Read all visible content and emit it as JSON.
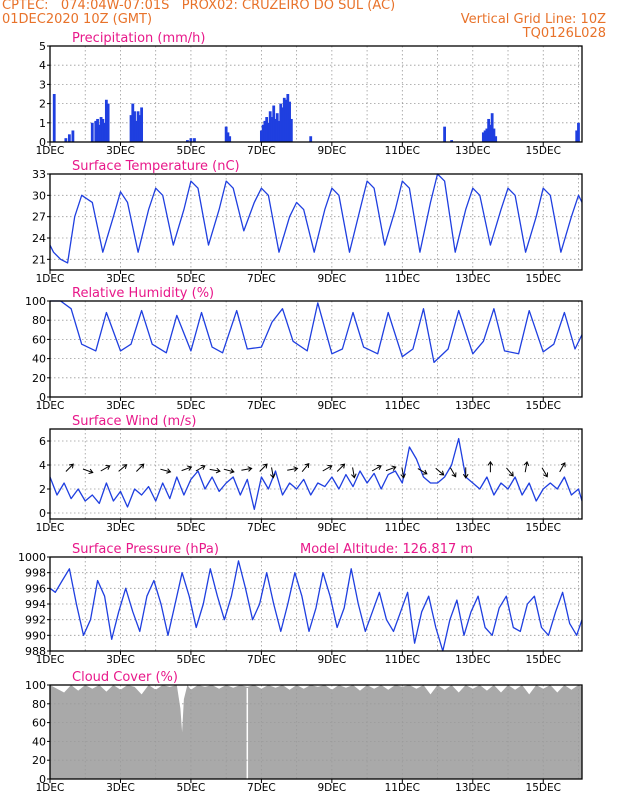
{
  "header": {
    "line1": "CPTEC:   074:04W-07:01S   PROX02: CRUZEIRO DO SUL (AC)",
    "line2_left": "01DEC2020 10Z (GMT)",
    "line2_right": "Vertical Grid Line: 10Z",
    "line3_right": "TQ0126L028"
  },
  "colors": {
    "header": "#e8722a",
    "title": "#e8188a",
    "series": "#1f3fe0",
    "cloud": "#a9a9a9",
    "grid": "#9a9a9a"
  },
  "xaxis": {
    "tick_labels": [
      "1DEC",
      "3DEC",
      "5DEC",
      "7DEC",
      "9DEC",
      "11DEC",
      "13DEC",
      "15DEC"
    ],
    "range_days": [
      1,
      16.1
    ]
  },
  "chart_data": [
    {
      "type": "bar",
      "title": "Precipitation (mm/h)",
      "ylim": [
        0,
        5
      ],
      "yticks": [
        0,
        1,
        2,
        3,
        4,
        5
      ],
      "x": [
        1.12,
        1.45,
        1.55,
        1.65,
        2.2,
        2.3,
        2.35,
        2.4,
        2.45,
        2.5,
        2.55,
        2.6,
        2.65,
        3.3,
        3.35,
        3.4,
        3.45,
        3.5,
        3.55,
        3.6,
        4.9,
        5.0,
        5.1,
        6.0,
        6.05,
        6.1,
        7.0,
        7.05,
        7.1,
        7.15,
        7.2,
        7.25,
        7.3,
        7.35,
        7.4,
        7.45,
        7.5,
        7.55,
        7.6,
        7.65,
        7.7,
        7.75,
        7.8,
        7.85,
        8.4,
        12.2,
        12.4,
        13.3,
        13.35,
        13.4,
        13.45,
        13.5,
        13.55,
        13.6,
        13.65,
        15.95,
        16.0
      ],
      "values": [
        2.5,
        0.2,
        0.4,
        0.6,
        1.0,
        1.1,
        1.2,
        0.9,
        1.3,
        1.2,
        1.0,
        2.2,
        2.0,
        1.4,
        2.0,
        1.6,
        1.1,
        1.6,
        1.4,
        1.8,
        0.1,
        0.2,
        0.2,
        0.8,
        0.5,
        0.3,
        0.6,
        0.9,
        1.1,
        1.3,
        1.0,
        1.6,
        1.3,
        1.9,
        1.2,
        1.5,
        1.1,
        2.0,
        1.8,
        2.3,
        2.2,
        2.5,
        2.1,
        1.2,
        0.3,
        0.8,
        0.1,
        0.5,
        0.6,
        0.7,
        1.2,
        0.9,
        1.5,
        0.7,
        0.3,
        0.6,
        1.0
      ]
    },
    {
      "type": "line",
      "title": "Surface Temperature (nC)",
      "ylim": [
        19.5,
        33
      ],
      "yticks": [
        21,
        24,
        27,
        30,
        33
      ],
      "x": [
        1.0,
        1.1,
        1.3,
        1.5,
        1.7,
        1.9,
        2.2,
        2.5,
        2.8,
        3.0,
        3.2,
        3.5,
        3.8,
        4.0,
        4.2,
        4.5,
        4.8,
        5.0,
        5.2,
        5.5,
        5.8,
        6.0,
        6.2,
        6.5,
        6.8,
        7.0,
        7.2,
        7.5,
        7.8,
        8.0,
        8.2,
        8.5,
        8.8,
        9.0,
        9.2,
        9.5,
        9.8,
        10.0,
        10.2,
        10.5,
        10.8,
        11.0,
        11.2,
        11.5,
        11.8,
        12.0,
        12.2,
        12.5,
        12.8,
        13.0,
        13.2,
        13.5,
        13.8,
        14.0,
        14.2,
        14.5,
        14.8,
        15.0,
        15.2,
        15.5,
        15.8,
        16.0,
        16.1
      ],
      "values": [
        23,
        22,
        21,
        20.5,
        27,
        30,
        29,
        22,
        27,
        30.5,
        29,
        22,
        28,
        31,
        30,
        23,
        28,
        32,
        31,
        23,
        28,
        32,
        31,
        25,
        29,
        31,
        30,
        22,
        27,
        29,
        28,
        22,
        28,
        31,
        30,
        22,
        28,
        32,
        31,
        23,
        28,
        32,
        31,
        22,
        29,
        33,
        32,
        22,
        28,
        31,
        30,
        23,
        28,
        31,
        30,
        22,
        27,
        31,
        30,
        22,
        27,
        30,
        29
      ]
    },
    {
      "type": "line",
      "title": "Relative Humidity (%)",
      "ylim": [
        0,
        100
      ],
      "yticks": [
        0,
        20,
        40,
        60,
        80,
        100
      ],
      "x": [
        1.0,
        1.3,
        1.6,
        1.9,
        2.3,
        2.6,
        3.0,
        3.3,
        3.6,
        3.9,
        4.3,
        4.6,
        5.0,
        5.3,
        5.6,
        5.9,
        6.3,
        6.6,
        7.0,
        7.3,
        7.6,
        7.9,
        8.3,
        8.6,
        9.0,
        9.3,
        9.6,
        9.9,
        10.3,
        10.6,
        11.0,
        11.3,
        11.6,
        11.9,
        12.3,
        12.6,
        13.0,
        13.3,
        13.6,
        13.9,
        14.3,
        14.6,
        15.0,
        15.3,
        15.6,
        15.9,
        16.1
      ],
      "values": [
        100,
        100,
        92,
        55,
        48,
        88,
        48,
        55,
        90,
        55,
        46,
        85,
        48,
        88,
        52,
        46,
        90,
        50,
        52,
        78,
        92,
        58,
        48,
        98,
        45,
        50,
        88,
        52,
        45,
        88,
        42,
        50,
        92,
        36,
        50,
        90,
        45,
        58,
        92,
        48,
        45,
        90,
        47,
        55,
        88,
        50,
        65
      ]
    },
    {
      "type": "line",
      "title": "Surface Wind (m/s)",
      "ylim": [
        -0.5,
        7
      ],
      "yticks": [
        0,
        2,
        4,
        6
      ],
      "x": [
        1.0,
        1.2,
        1.4,
        1.6,
        1.8,
        2.0,
        2.2,
        2.4,
        2.6,
        2.8,
        3.0,
        3.2,
        3.4,
        3.6,
        3.8,
        4.0,
        4.2,
        4.4,
        4.6,
        4.8,
        5.0,
        5.2,
        5.4,
        5.6,
        5.8,
        6.0,
        6.2,
        6.4,
        6.6,
        6.8,
        7.0,
        7.2,
        7.4,
        7.6,
        7.8,
        8.0,
        8.2,
        8.4,
        8.6,
        8.8,
        9.0,
        9.2,
        9.4,
        9.6,
        9.8,
        10.0,
        10.2,
        10.4,
        10.6,
        10.8,
        11.0,
        11.2,
        11.4,
        11.6,
        11.8,
        12.0,
        12.2,
        12.4,
        12.6,
        12.8,
        13.0,
        13.2,
        13.4,
        13.6,
        13.8,
        14.0,
        14.2,
        14.4,
        14.6,
        14.8,
        15.0,
        15.2,
        15.4,
        15.6,
        15.8,
        16.0,
        16.1
      ],
      "values": [
        3,
        1.5,
        2.5,
        1.2,
        2,
        1,
        1.5,
        0.8,
        2.5,
        1,
        1.8,
        0.5,
        2,
        1.5,
        2.2,
        1,
        2.5,
        1.2,
        3,
        1.5,
        2.8,
        3.5,
        2,
        3,
        1.8,
        2.5,
        3,
        1.5,
        2.8,
        0.3,
        3,
        2,
        3.5,
        1.5,
        2.5,
        2,
        2.8,
        1.5,
        2.5,
        2.2,
        3,
        2,
        3.2,
        2.2,
        3.5,
        2.5,
        3.3,
        2,
        3.2,
        3.5,
        2.5,
        5.5,
        4.5,
        3,
        2.5,
        2.5,
        3,
        4,
        6.2,
        3,
        2.5,
        2,
        3,
        1.5,
        2.5,
        2,
        3,
        1.5,
        2.5,
        1,
        2,
        2.5,
        2,
        3,
        1.5,
        2,
        1
      ]
    },
    {
      "type": "line",
      "title": "Surface Pressure (hPa)",
      "annotation": "Model Altitude: 126.817  m",
      "ylim": [
        988,
        1000
      ],
      "yticks": [
        988,
        990,
        992,
        994,
        996,
        998,
        1000
      ],
      "x": [
        1.0,
        1.15,
        1.35,
        1.55,
        1.75,
        1.95,
        2.15,
        2.35,
        2.55,
        2.75,
        2.95,
        3.15,
        3.35,
        3.55,
        3.75,
        3.95,
        4.15,
        4.35,
        4.55,
        4.75,
        4.95,
        5.15,
        5.35,
        5.55,
        5.75,
        5.95,
        6.15,
        6.35,
        6.55,
        6.75,
        6.95,
        7.15,
        7.35,
        7.55,
        7.75,
        7.95,
        8.15,
        8.35,
        8.55,
        8.75,
        8.95,
        9.15,
        9.35,
        9.55,
        9.75,
        9.95,
        10.15,
        10.35,
        10.55,
        10.75,
        10.95,
        11.15,
        11.35,
        11.55,
        11.75,
        11.95,
        12.15,
        12.35,
        12.55,
        12.75,
        12.95,
        13.15,
        13.35,
        13.55,
        13.75,
        13.95,
        14.15,
        14.35,
        14.55,
        14.75,
        14.95,
        15.15,
        15.35,
        15.55,
        15.75,
        15.95,
        16.1
      ],
      "values": [
        996,
        995.5,
        997,
        998.5,
        994,
        990,
        992,
        997,
        995,
        989.5,
        993,
        996,
        993,
        990.5,
        995,
        997,
        994,
        990,
        994,
        998,
        995,
        991,
        994,
        998.5,
        995,
        992,
        995,
        999.5,
        996,
        992,
        994,
        998,
        994,
        990.5,
        994,
        998,
        995,
        990.5,
        993.5,
        998,
        995,
        991,
        993.5,
        998.5,
        994,
        990.5,
        993,
        995.5,
        992,
        990.5,
        993,
        995.5,
        989,
        993,
        995,
        991,
        988,
        992,
        994.5,
        990,
        993,
        995,
        991,
        990,
        993.5,
        995,
        991,
        990.5,
        994,
        995,
        991,
        990,
        993,
        995.5,
        991.5,
        990,
        992
      ]
    },
    {
      "type": "area",
      "title": "Cloud Cover (%)",
      "ylim": [
        0,
        100
      ],
      "yticks": [
        0,
        20,
        40,
        60,
        80,
        100
      ],
      "x": [
        1.0,
        1.2,
        1.4,
        1.6,
        1.8,
        2.0,
        2.2,
        2.4,
        2.6,
        2.8,
        3.0,
        3.2,
        3.4,
        3.6,
        3.8,
        4.0,
        4.2,
        4.4,
        4.6,
        4.7,
        4.75,
        4.8,
        4.9,
        5.0,
        5.2,
        5.4,
        5.6,
        5.8,
        6.0,
        6.2,
        6.4,
        6.6,
        6.8,
        7.0,
        7.2,
        7.4,
        7.6,
        7.8,
        8.0,
        8.2,
        8.4,
        8.6,
        8.8,
        9.0,
        9.2,
        9.4,
        9.6,
        9.8,
        10.0,
        10.2,
        10.4,
        10.6,
        10.8,
        11.0,
        11.2,
        11.4,
        11.6,
        11.8,
        12.0,
        12.2,
        12.4,
        12.6,
        12.8,
        13.0,
        13.2,
        13.4,
        13.6,
        13.8,
        14.0,
        14.2,
        14.4,
        14.6,
        14.8,
        15.0,
        15.2,
        15.4,
        15.6,
        15.8,
        16.0,
        16.1
      ],
      "values": [
        100,
        96,
        92,
        100,
        94,
        100,
        96,
        100,
        93,
        100,
        95,
        100,
        98,
        90,
        100,
        95,
        100,
        98,
        100,
        75,
        50,
        85,
        100,
        95,
        100,
        98,
        100,
        96,
        100,
        97,
        100,
        98,
        100,
        96,
        100,
        97,
        100,
        95,
        100,
        96,
        100,
        98,
        100,
        95,
        100,
        97,
        100,
        94,
        100,
        96,
        100,
        95,
        100,
        98,
        100,
        96,
        100,
        90,
        100,
        95,
        100,
        92,
        100,
        96,
        100,
        94,
        100,
        92,
        100,
        95,
        100,
        90,
        100,
        96,
        100,
        92,
        100,
        95,
        100,
        98
      ]
    }
  ]
}
